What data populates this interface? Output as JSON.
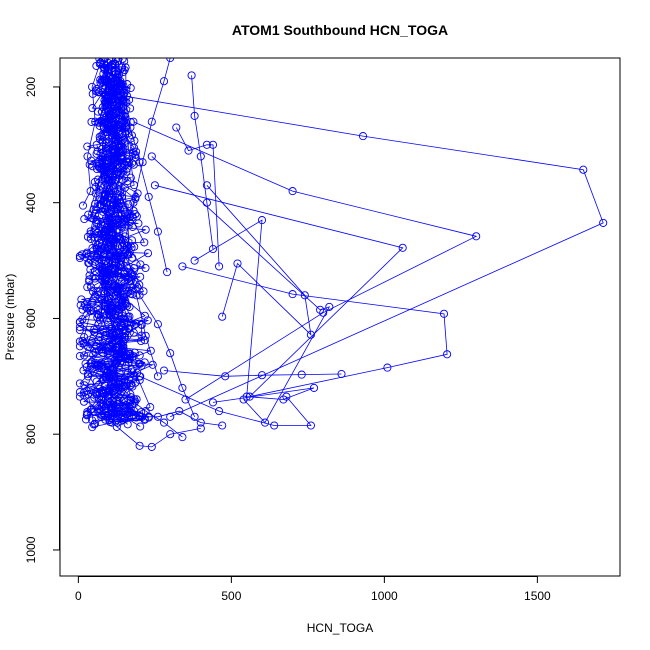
{
  "chart_data": {
    "type": "scatter",
    "title": "ATOM1 Southbound HCN_TOGA",
    "xlabel": "HCN_TOGA",
    "ylabel": "Pressure (mbar)",
    "xlim": [
      -60,
      1770
    ],
    "ylim": [
      1045,
      150
    ],
    "y_reversed": true,
    "x_ticks": [
      0,
      500,
      1000,
      1500
    ],
    "y_ticks": [
      200,
      400,
      600,
      800,
      1000
    ],
    "grid": false,
    "legend": "none",
    "colors": {
      "series": "#0000ff",
      "axes": "#000000"
    },
    "marker": "open-circle",
    "series": [
      {
        "points": [
          [
            15,
            405
          ],
          [
            40,
            380
          ],
          [
            30,
            320
          ],
          [
            55,
            260
          ],
          [
            45,
            200
          ],
          [
            70,
            160
          ]
        ]
      },
      {
        "points": [
          [
            80,
            620
          ],
          [
            120,
            545
          ],
          [
            150,
            470
          ],
          [
            180,
            400
          ],
          [
            210,
            330
          ],
          [
            240,
            260
          ],
          [
            280,
            190
          ],
          [
            300,
            150
          ]
        ]
      },
      {
        "points": [
          [
            140,
            215
          ],
          [
            930,
            285
          ],
          [
            1650,
            343
          ],
          [
            1715,
            435
          ],
          [
            300,
            770
          ]
        ]
      },
      {
        "points": [
          [
            180,
            260
          ],
          [
            700,
            380
          ],
          [
            1300,
            458
          ],
          [
            800,
            590
          ],
          [
            350,
            740
          ]
        ]
      },
      {
        "points": [
          [
            250,
            370
          ],
          [
            1060,
            478
          ],
          [
            560,
            735
          ],
          [
            1010,
            685
          ],
          [
            1205,
            662
          ],
          [
            1195,
            592
          ],
          [
            700,
            558
          ],
          [
            340,
            510
          ]
        ]
      },
      {
        "points": [
          [
            380,
            500
          ],
          [
            600,
            430
          ],
          [
            550,
            735
          ],
          [
            670,
            740
          ],
          [
            770,
            720
          ],
          [
            440,
            745
          ]
        ]
      },
      {
        "points": [
          [
            200,
            700
          ],
          [
            460,
            760
          ],
          [
            640,
            785
          ],
          [
            760,
            785
          ],
          [
            680,
            735
          ]
        ]
      },
      {
        "points": [
          [
            280,
            690
          ],
          [
            480,
            700
          ],
          [
            600,
            698
          ],
          [
            730,
            697
          ],
          [
            860,
            696
          ]
        ]
      },
      {
        "points": [
          [
            110,
            780
          ],
          [
            200,
            820
          ],
          [
            240,
            822
          ],
          [
            300,
            800
          ],
          [
            400,
            790
          ]
        ]
      },
      {
        "points": [
          [
            320,
            270
          ],
          [
            360,
            310
          ],
          [
            420,
            300
          ],
          [
            440,
            300
          ],
          [
            460,
            510
          ]
        ]
      },
      {
        "points": [
          [
            370,
            180
          ],
          [
            380,
            250
          ],
          [
            400,
            320
          ],
          [
            420,
            400
          ],
          [
            440,
            480
          ]
        ]
      },
      {
        "points": [
          [
            90,
            450
          ],
          [
            140,
            500
          ],
          [
            200,
            560
          ],
          [
            260,
            610
          ],
          [
            300,
            660
          ],
          [
            340,
            720
          ],
          [
            380,
            770
          ]
        ]
      },
      {
        "points": [
          [
            60,
            300
          ],
          [
            100,
            360
          ],
          [
            130,
            420
          ],
          [
            160,
            490
          ],
          [
            190,
            560
          ],
          [
            220,
            630
          ],
          [
            260,
            700
          ]
        ]
      },
      {
        "points": [
          [
            110,
            700
          ],
          [
            150,
            740
          ],
          [
            200,
            770
          ],
          [
            260,
            770
          ],
          [
            330,
            760
          ],
          [
            400,
            780
          ],
          [
            470,
            785
          ]
        ]
      },
      {
        "points": [
          [
            55,
            680
          ],
          [
            90,
            700
          ],
          [
            130,
            720
          ],
          [
            170,
            740
          ],
          [
            220,
            760
          ],
          [
            280,
            780
          ],
          [
            340,
            805
          ]
        ]
      },
      {
        "points": [
          [
            120,
            160
          ],
          [
            150,
            210
          ],
          [
            170,
            270
          ],
          [
            200,
            330
          ],
          [
            230,
            390
          ],
          [
            260,
            450
          ],
          [
            290,
            520
          ]
        ]
      },
      {
        "points": [
          [
            420,
            370
          ],
          [
            740,
            560
          ],
          [
            760,
            628
          ],
          [
            520,
            505
          ],
          [
            470,
            597
          ]
        ]
      },
      {
        "points": [
          [
            240,
            320
          ],
          [
            790,
            585
          ],
          [
            820,
            580
          ],
          [
            610,
            780
          ],
          [
            540,
            740
          ]
        ]
      }
    ],
    "cloud": {
      "seed": 12345,
      "count": 900,
      "x_center": 110,
      "x_spread": 80,
      "p_min": 150,
      "p_max": 790
    }
  }
}
